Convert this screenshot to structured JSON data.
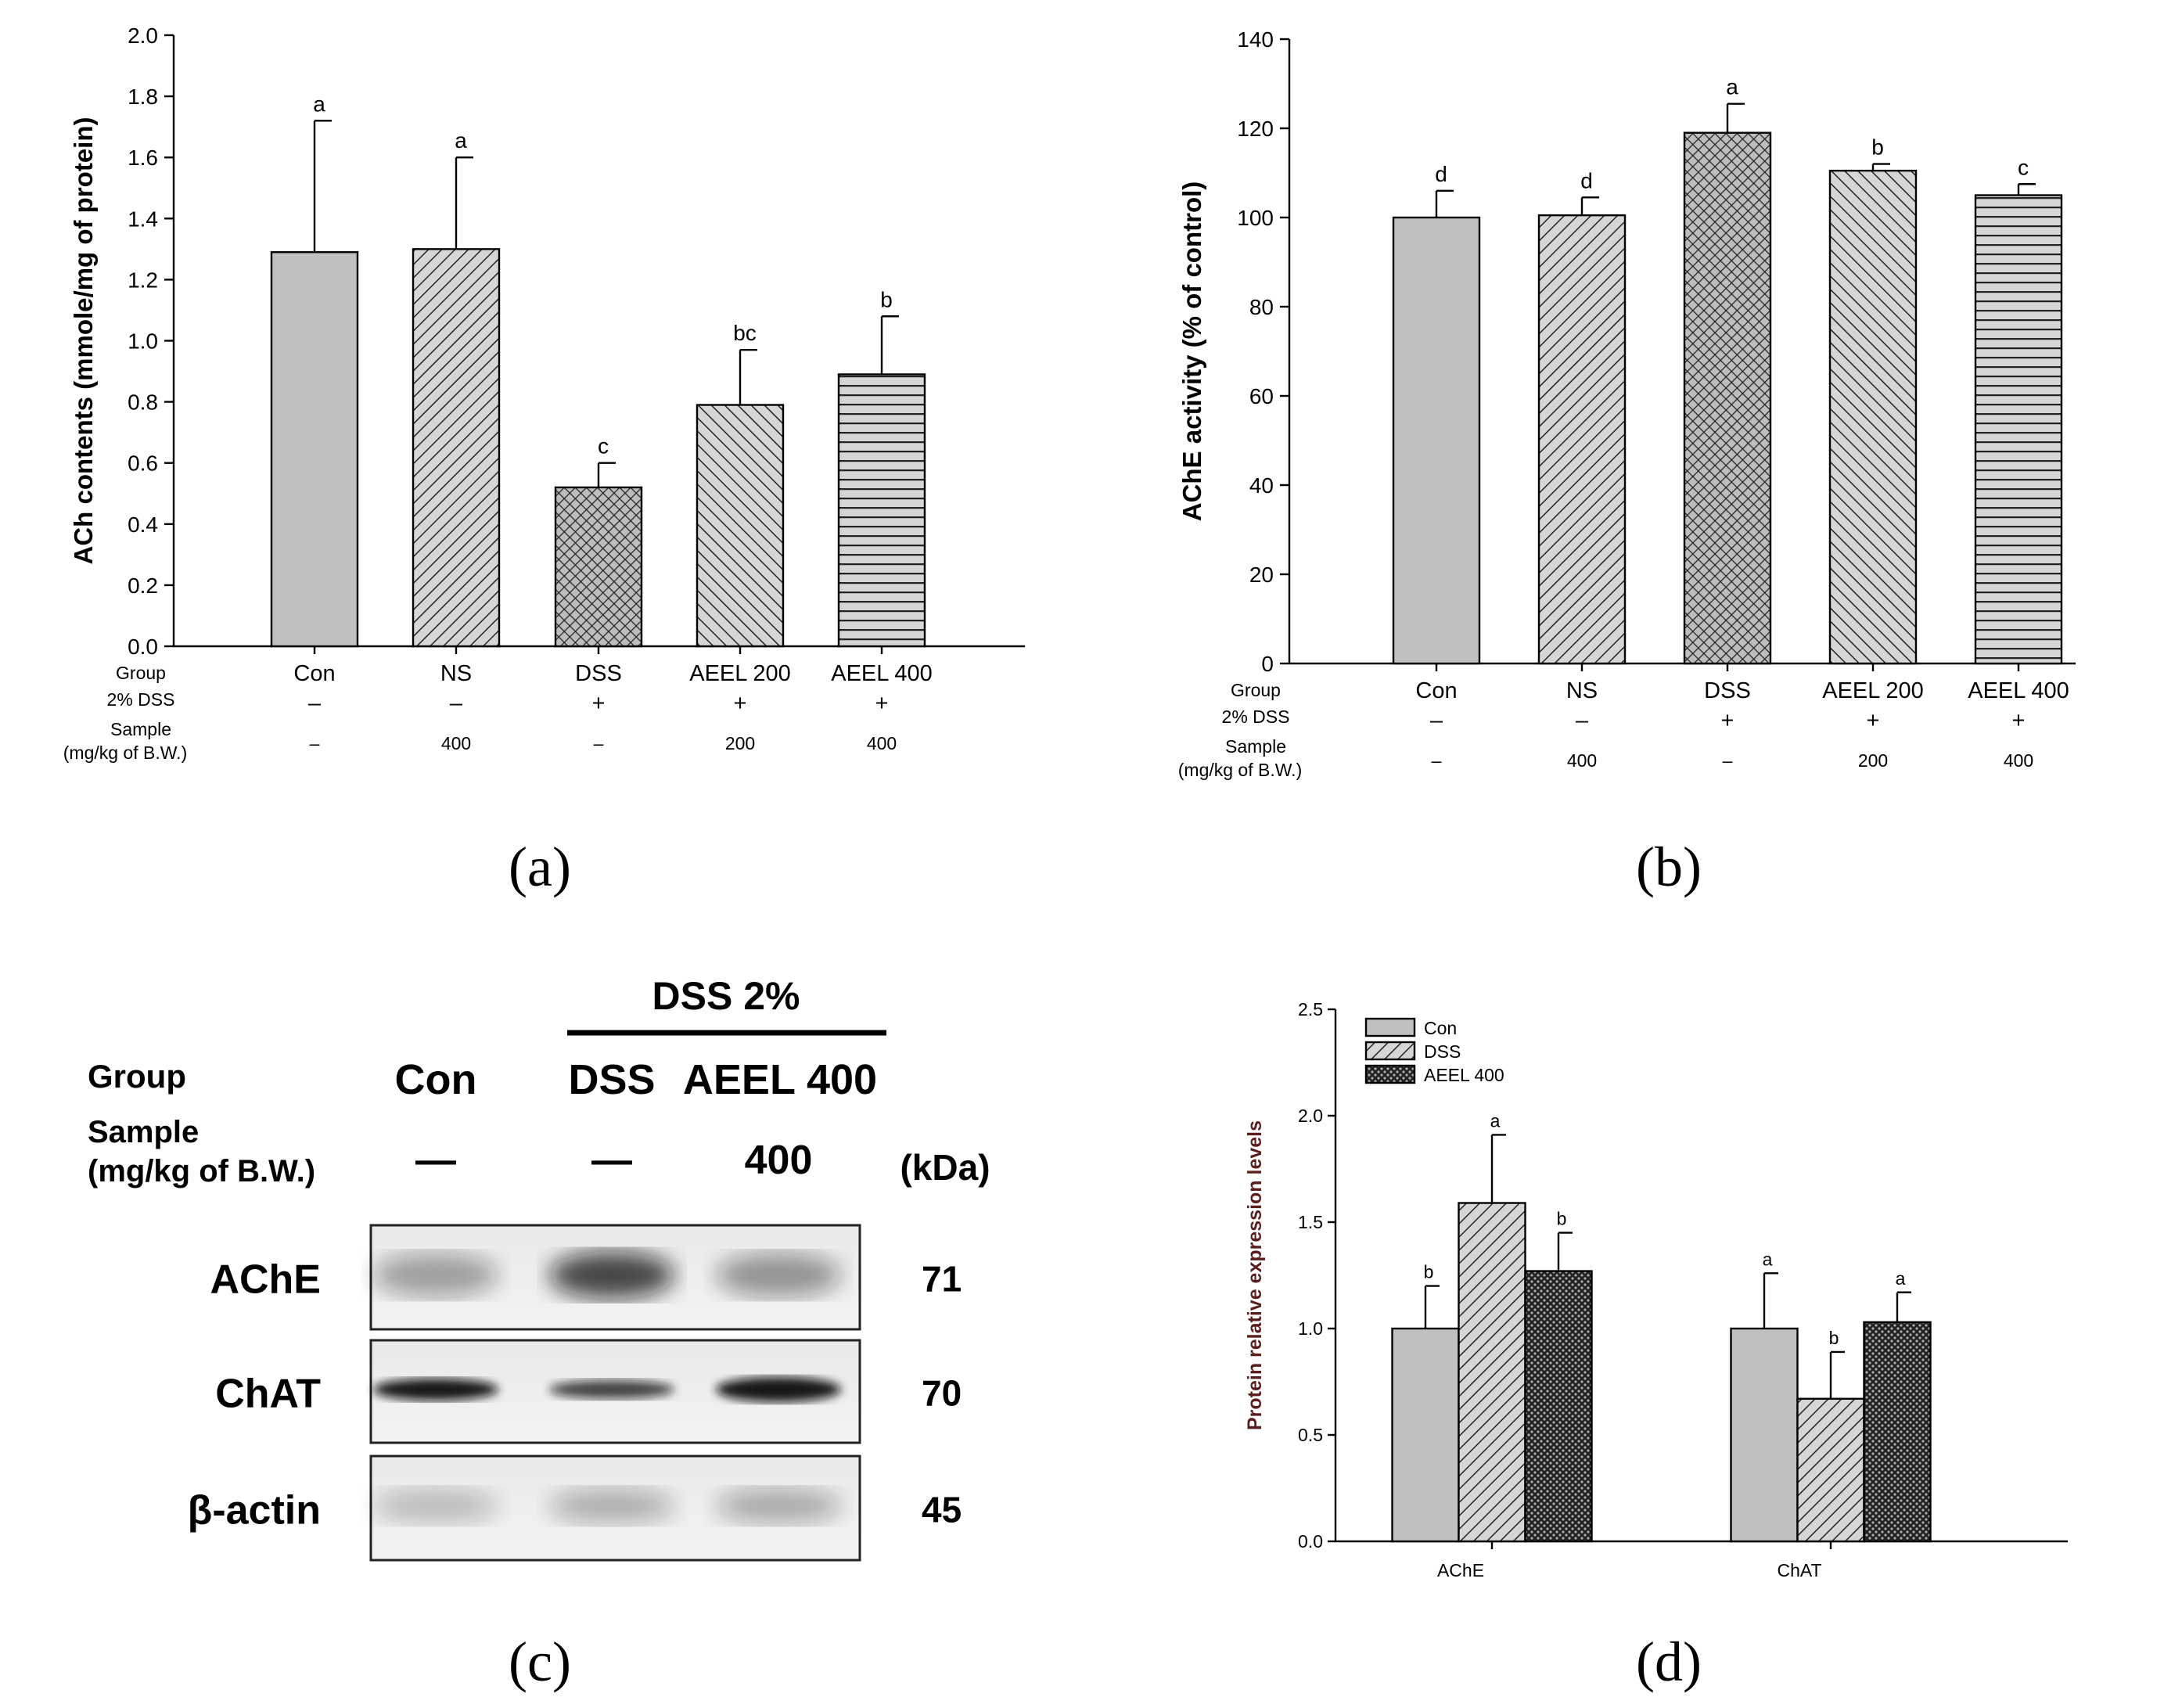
{
  "panel_labels": [
    "(a)",
    "(b)",
    "(c)",
    "(d)"
  ],
  "row_labels": {
    "group": "Group",
    "dss": "2% DSS",
    "sample_line1": "Sample",
    "sample_line2": "(mg/kg of B.W.)"
  },
  "chart_data": [
    {
      "id": "a",
      "type": "bar",
      "ylabel": "ACh contents (mmole/mg of protein)",
      "ylim": [
        0,
        2.0
      ],
      "yticks": [
        "0.0",
        "0.2",
        "0.4",
        "0.6",
        "0.8",
        "1.0",
        "1.2",
        "1.4",
        "1.6",
        "1.8",
        "2.0"
      ],
      "categories": [
        "Con",
        "NS",
        "DSS",
        "AEEL 200",
        "AEEL 400"
      ],
      "values": [
        1.29,
        1.3,
        0.52,
        0.79,
        0.89
      ],
      "errors": [
        0.43,
        0.3,
        0.08,
        0.18,
        0.19
      ],
      "significance": [
        "a",
        "a",
        "c",
        "bc",
        "b"
      ],
      "dss_row": [
        "–",
        "–",
        "+",
        "+",
        "+"
      ],
      "sample_row": [
        "–",
        "400",
        "–",
        "200",
        "400"
      ],
      "patterns": [
        "solid",
        "diag-right",
        "cross",
        "diag-left",
        "horizontal"
      ]
    },
    {
      "id": "b",
      "type": "bar",
      "ylabel": "AChE activity (% of control)",
      "ylim": [
        0,
        140
      ],
      "yticks": [
        "0",
        "20",
        "40",
        "60",
        "80",
        "100",
        "120",
        "140"
      ],
      "categories": [
        "Con",
        "NS",
        "DSS",
        "AEEL 200",
        "AEEL 400"
      ],
      "values": [
        100,
        100.5,
        119,
        110.5,
        105
      ],
      "errors": [
        6,
        4,
        6.5,
        1.5,
        2.5
      ],
      "significance": [
        "d",
        "d",
        "a",
        "b",
        "c"
      ],
      "dss_row": [
        "–",
        "–",
        "+",
        "+",
        "+"
      ],
      "sample_row": [
        "–",
        "400",
        "–",
        "200",
        "400"
      ],
      "patterns": [
        "solid",
        "diag-right",
        "cross",
        "diag-left",
        "horizontal"
      ]
    },
    {
      "id": "d",
      "type": "bar",
      "ylabel": "Protein relative expression levels",
      "ylim": [
        0,
        2.5
      ],
      "yticks": [
        "0.0",
        "0.5",
        "1.0",
        "1.5",
        "2.0",
        "2.5"
      ],
      "categories": [
        "AChE",
        "ChAT"
      ],
      "legend": [
        "Con",
        "DSS",
        "AEEL 400"
      ],
      "legend_position": "top-left",
      "series": [
        {
          "name": "Con",
          "values": [
            1.0,
            1.0
          ],
          "errors": [
            0.2,
            0.26
          ],
          "significance": [
            "b",
            "a"
          ],
          "pattern": "solid"
        },
        {
          "name": "DSS",
          "values": [
            1.59,
            0.67
          ],
          "errors": [
            0.32,
            0.22
          ],
          "significance": [
            "a",
            "b"
          ],
          "pattern": "diag-right"
        },
        {
          "name": "AEEL 400",
          "values": [
            1.27,
            1.03
          ],
          "errors": [
            0.18,
            0.14
          ],
          "significance": [
            "b",
            "a"
          ],
          "pattern": "dots"
        }
      ]
    }
  ],
  "western_blot": {
    "header": "DSS 2%",
    "group_label": "Group",
    "sample_label_line1": "Sample",
    "sample_label_line2": "(mg/kg of B.W.)",
    "kda_label": "(kDa)",
    "groups": [
      "Con",
      "DSS",
      "AEEL 400"
    ],
    "samples": [
      "—",
      "—",
      "400"
    ],
    "bands": [
      {
        "name": "AChE",
        "kda": "71"
      },
      {
        "name": "ChAT",
        "kda": "70"
      },
      {
        "name": "β-actin",
        "kda": "45"
      }
    ]
  }
}
